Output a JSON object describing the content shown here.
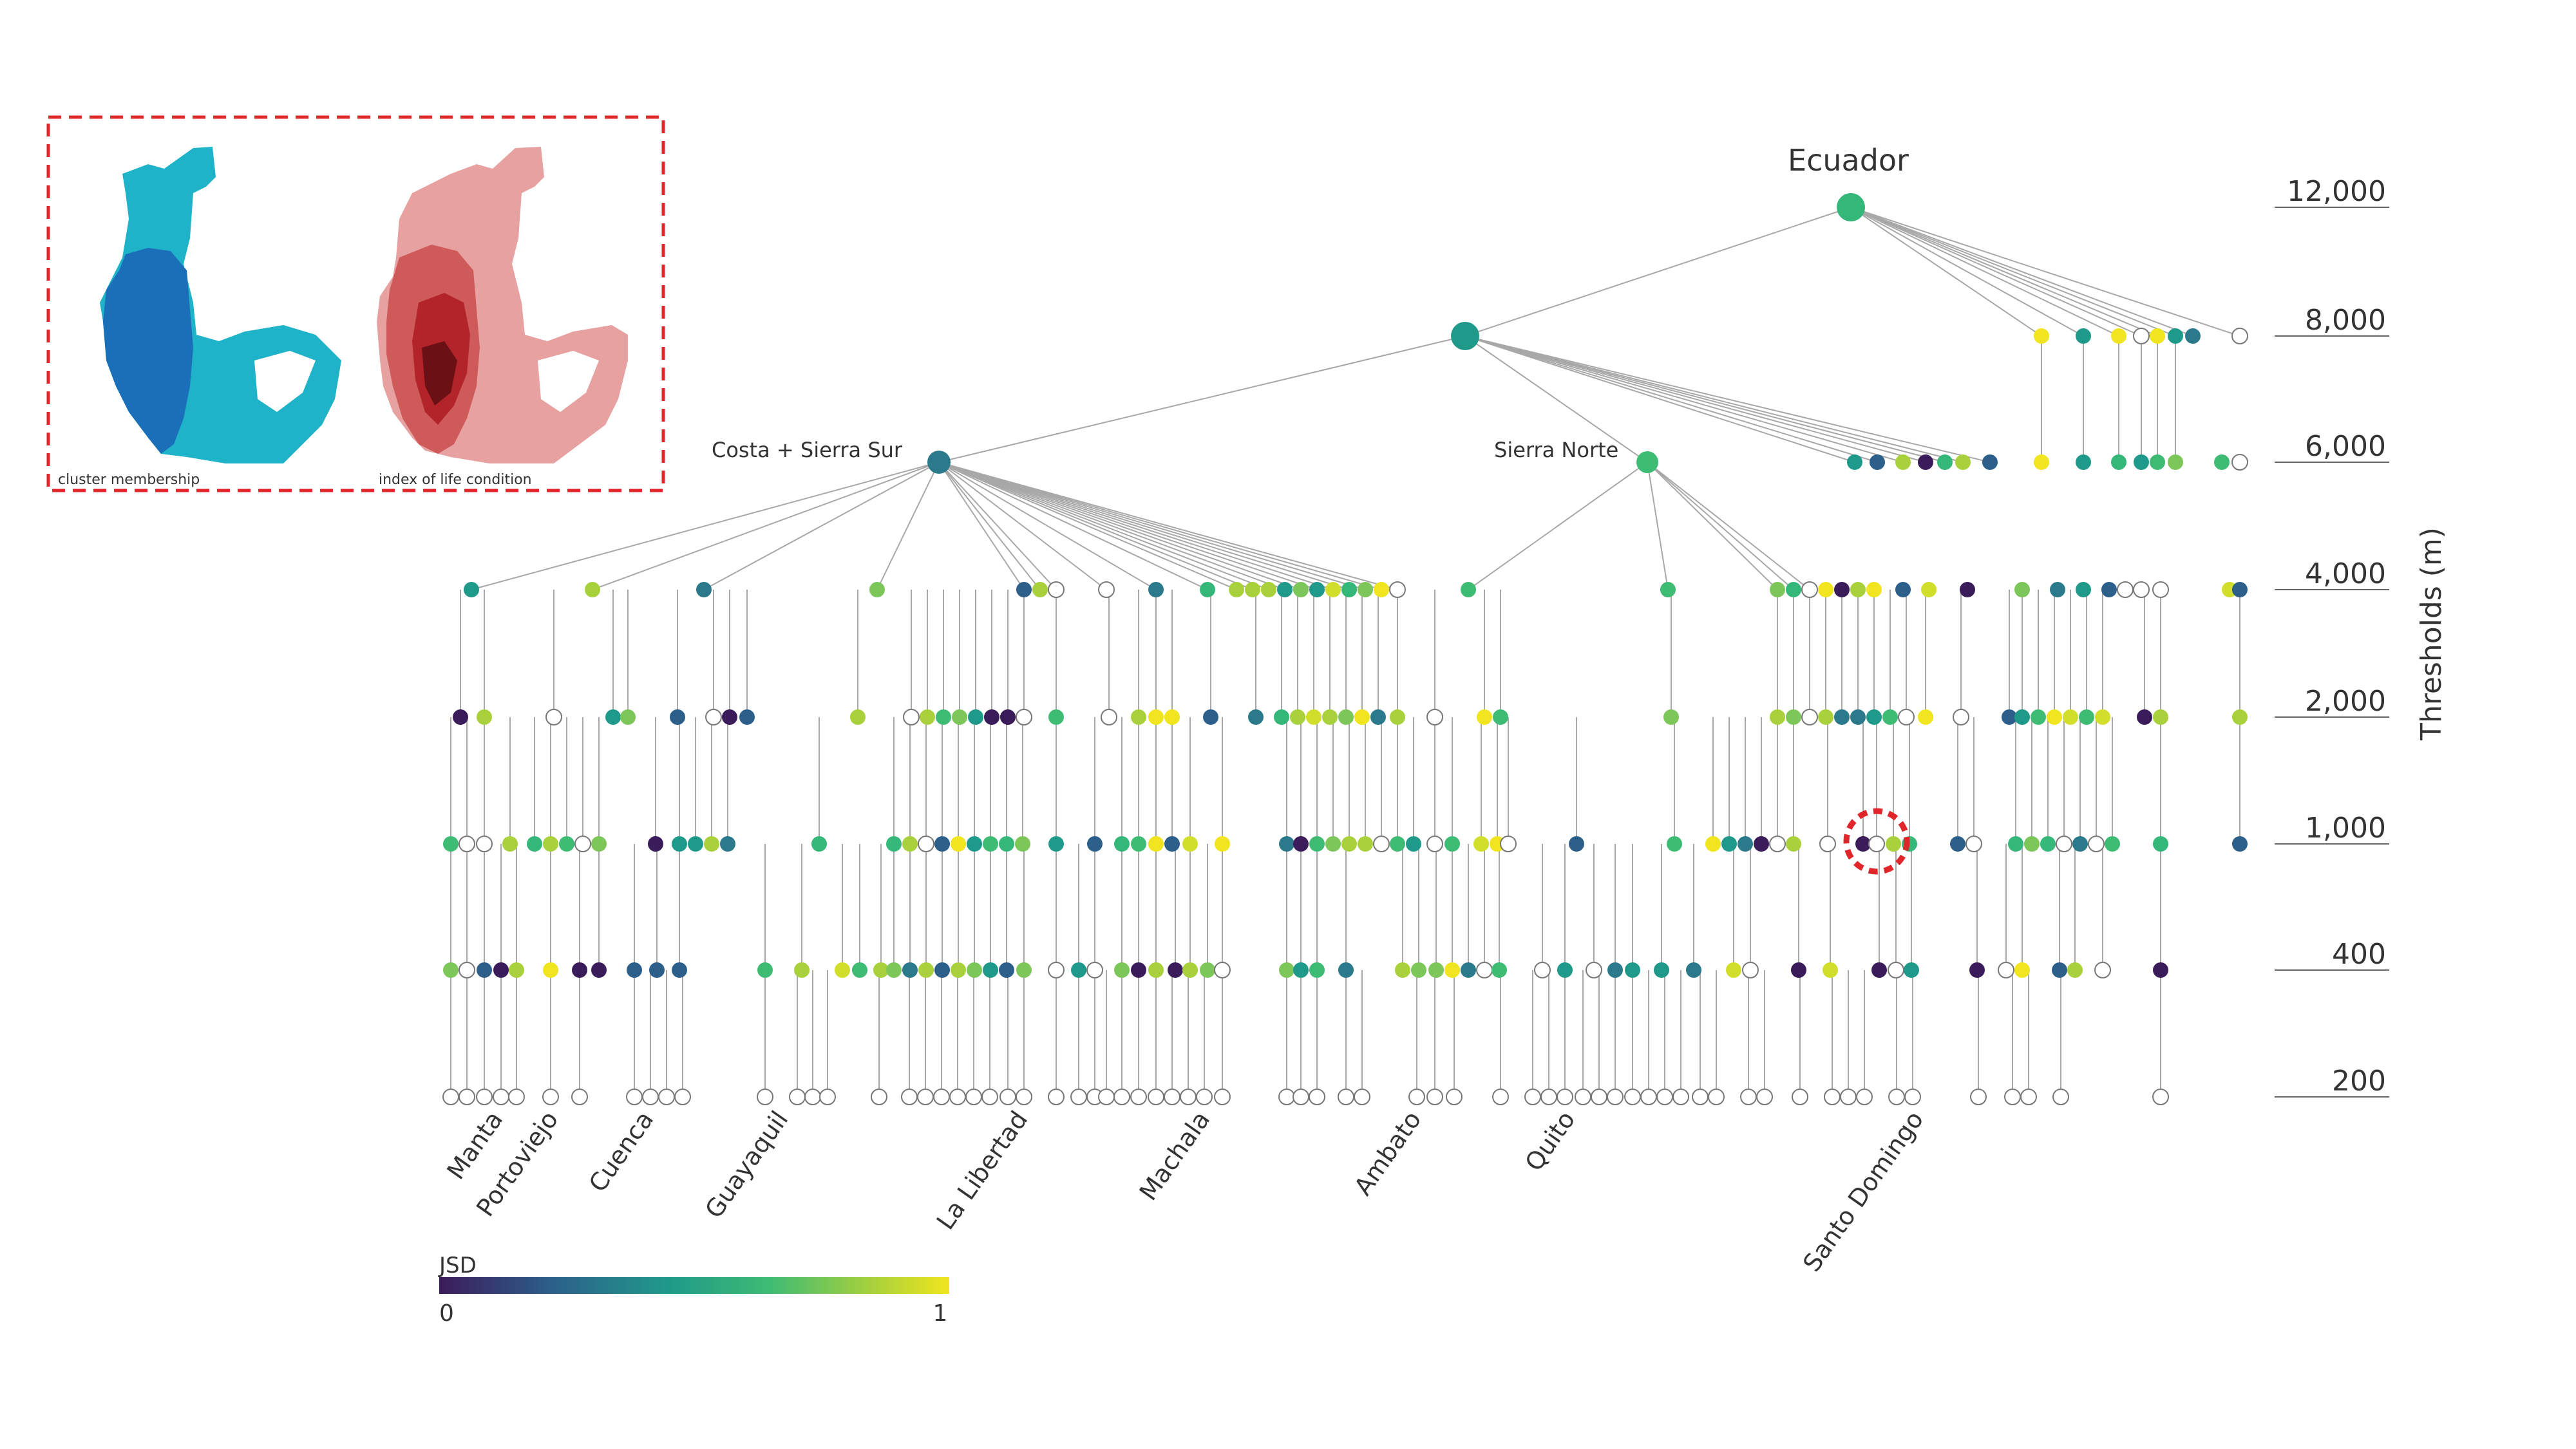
{
  "title": "Ecuador",
  "subtrees": [
    "Costa + Sierra Sur",
    "Sierra Norte"
  ],
  "axis": {
    "label": "Thresholds (m)",
    "levels": [
      "12,000",
      "8,000",
      "6,000",
      "4,000",
      "2,000",
      "1,000",
      "400",
      "200"
    ]
  },
  "cities": [
    "Manta",
    "Portoviejo",
    "Cuenca",
    "Guayaquil",
    "La Libertad",
    "Machala",
    "Ambato",
    "Quito",
    "Santo Domingo"
  ],
  "legend": {
    "title": "JSD",
    "min": "0",
    "max": "1",
    "colors": [
      "#3b1c5a",
      "#2c5f8a",
      "#1f9a8a",
      "#3fbc73",
      "#a8d13b",
      "#f0e51f"
    ]
  },
  "inset": {
    "left_caption": "cluster membership",
    "right_caption": "index of life condition",
    "blue_colors": [
      "#1fb3c9",
      "#1b6fb8"
    ],
    "red_colors": [
      "#e8a1a1",
      "#b3242a"
    ]
  },
  "highlight_color": "#e0262a"
}
